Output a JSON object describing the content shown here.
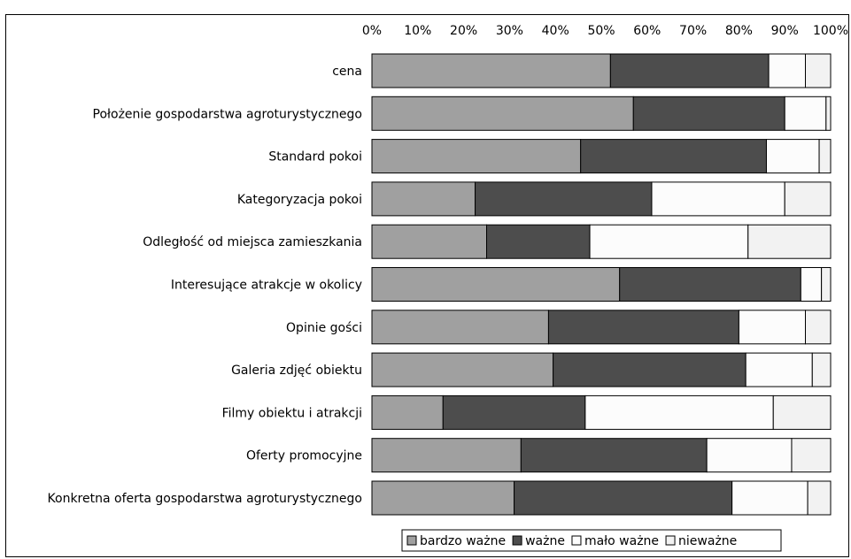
{
  "chart_data": {
    "type": "bar",
    "orientation": "horizontal",
    "stacked": "percent",
    "categories": [
      "cena",
      "Położenie gospodarstwa agroturystycznego",
      "Standard pokoi",
      "Kategoryzacja pokoi",
      "Odległość od miejsca zamieszkania",
      "Interesujące atrakcje w okolicy",
      "Opinie gości",
      "Galeria zdjęć obiektu",
      "Filmy obiektu i atrakcji",
      "Oferty promocyjne",
      "Konkretna oferta gospodarstwa agroturystycznego"
    ],
    "series": [
      {
        "name": "bardzo ważne",
        "color": "#a0a0a0",
        "values": [
          52,
          57,
          45.5,
          22.5,
          25,
          54,
          38.5,
          39.5,
          15.5,
          32.5,
          31
        ]
      },
      {
        "name": "ważne",
        "color": "#4d4d4d",
        "values": [
          34.5,
          33,
          40.5,
          38.5,
          22.5,
          39.5,
          41.5,
          42,
          31,
          40.5,
          47.5
        ]
      },
      {
        "name": "mało ważne",
        "color": "#fcfcfc",
        "values": [
          8,
          9,
          11.5,
          29,
          34.5,
          4.5,
          14.5,
          14.5,
          41,
          18.5,
          16.5
        ]
      },
      {
        "name": "nieważne",
        "color": "#f2f2f2",
        "values": [
          5.5,
          1,
          2.5,
          10,
          18,
          2,
          5.5,
          4,
          12.5,
          8.5,
          5
        ]
      }
    ],
    "xticks": [
      "0%",
      "10%",
      "20%",
      "30%",
      "40%",
      "50%",
      "60%",
      "70%",
      "80%",
      "90%",
      "100%"
    ],
    "xlim": [
      0,
      100
    ],
    "axis_position": "top",
    "legend_position": "bottom"
  }
}
